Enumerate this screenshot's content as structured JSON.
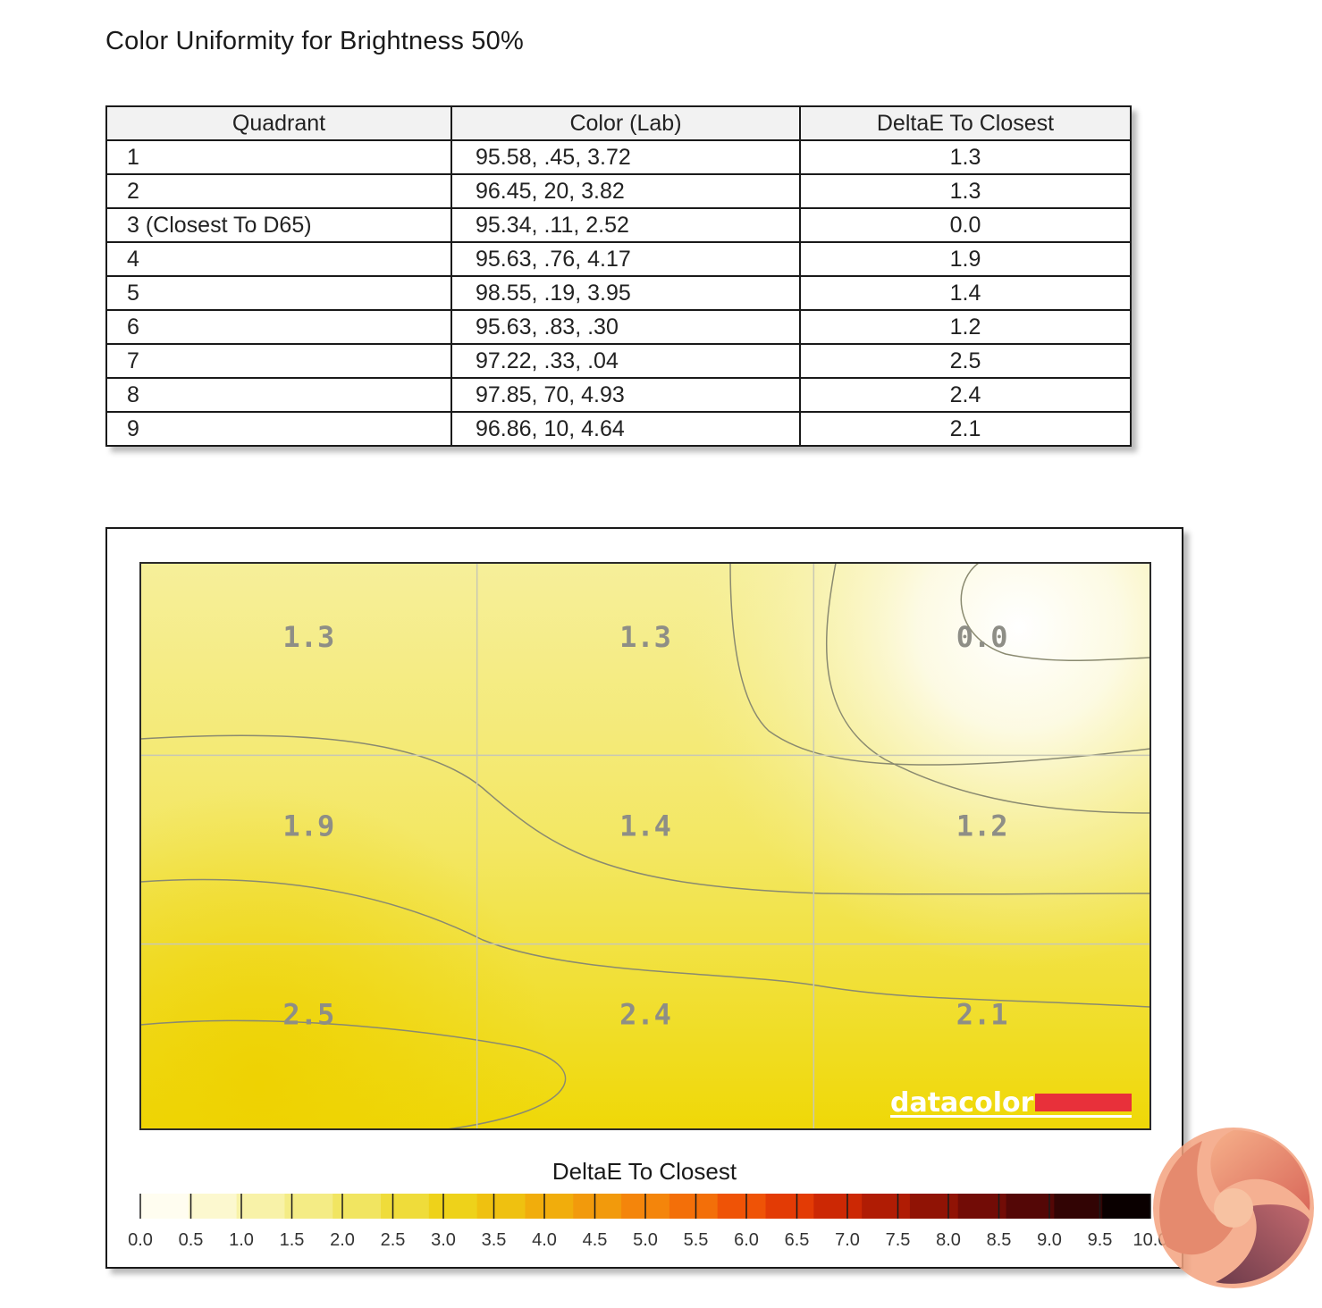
{
  "title": "Color Uniformity for Brightness 50%",
  "table": {
    "headers": [
      "Quadrant",
      "Color (Lab)",
      "DeltaE To Closest"
    ],
    "rows": [
      {
        "quadrant": "1",
        "lab": "95.58,   .45,  3.72",
        "delta": "1.3"
      },
      {
        "quadrant": "2",
        "lab": "96.45,    20,  3.82",
        "delta": "1.3"
      },
      {
        "quadrant": "3 (Closest To D65)",
        "lab": "95.34,   .11,  2.52",
        "delta": "0.0"
      },
      {
        "quadrant": "4",
        "lab": "95.63,   .76,  4.17",
        "delta": "1.9"
      },
      {
        "quadrant": "5",
        "lab": "98.55,   .19,  3.95",
        "delta": "1.4"
      },
      {
        "quadrant": "6",
        "lab": "95.63,   .83,   .30",
        "delta": "1.2"
      },
      {
        "quadrant": "7",
        "lab": "97.22,   .33,   .04",
        "delta": "2.5"
      },
      {
        "quadrant": "8",
        "lab": "97.85,    70,  4.93",
        "delta": "2.4"
      },
      {
        "quadrant": "9",
        "lab": "96.86,    10,  4.64",
        "delta": "2.1"
      }
    ]
  },
  "chart_data": {
    "type": "heatmap",
    "grid": {
      "rows": 3,
      "cols": 3
    },
    "cells": [
      [
        "1.3",
        "1.3",
        "0.0"
      ],
      [
        "1.9",
        "1.4",
        "1.2"
      ],
      [
        "2.5",
        "2.4",
        "2.1"
      ]
    ],
    "values": [
      [
        1.3,
        1.3,
        0.0
      ],
      [
        1.9,
        1.4,
        1.2
      ],
      [
        2.5,
        2.4,
        2.1
      ]
    ],
    "colorbar": {
      "title": "DeltaE To Closest",
      "range": [
        0,
        10
      ],
      "ticks": [
        "0.0",
        "0.5",
        "1.0",
        "1.5",
        "2.0",
        "2.5",
        "3.0",
        "3.5",
        "4.0",
        "4.5",
        "5.0",
        "5.5",
        "6.0",
        "6.5",
        "7.0",
        "7.5",
        "8.0",
        "8.5",
        "9.0",
        "9.5",
        "10.0"
      ],
      "colors": [
        "#fffdf0",
        "#fcf8cf",
        "#f8f2a8",
        "#f4ec85",
        "#f1e561",
        "#efdc3a",
        "#eed21a",
        "#efc110",
        "#f1ad0c",
        "#f29a0c",
        "#f4850b",
        "#f36f09",
        "#ef5306",
        "#e33b05",
        "#cc2804",
        "#b01c04",
        "#901305",
        "#720c06",
        "#540706",
        "#320404",
        "#0a0000"
      ]
    },
    "watermark": "datacolor",
    "accent_color": "#e8303a"
  }
}
